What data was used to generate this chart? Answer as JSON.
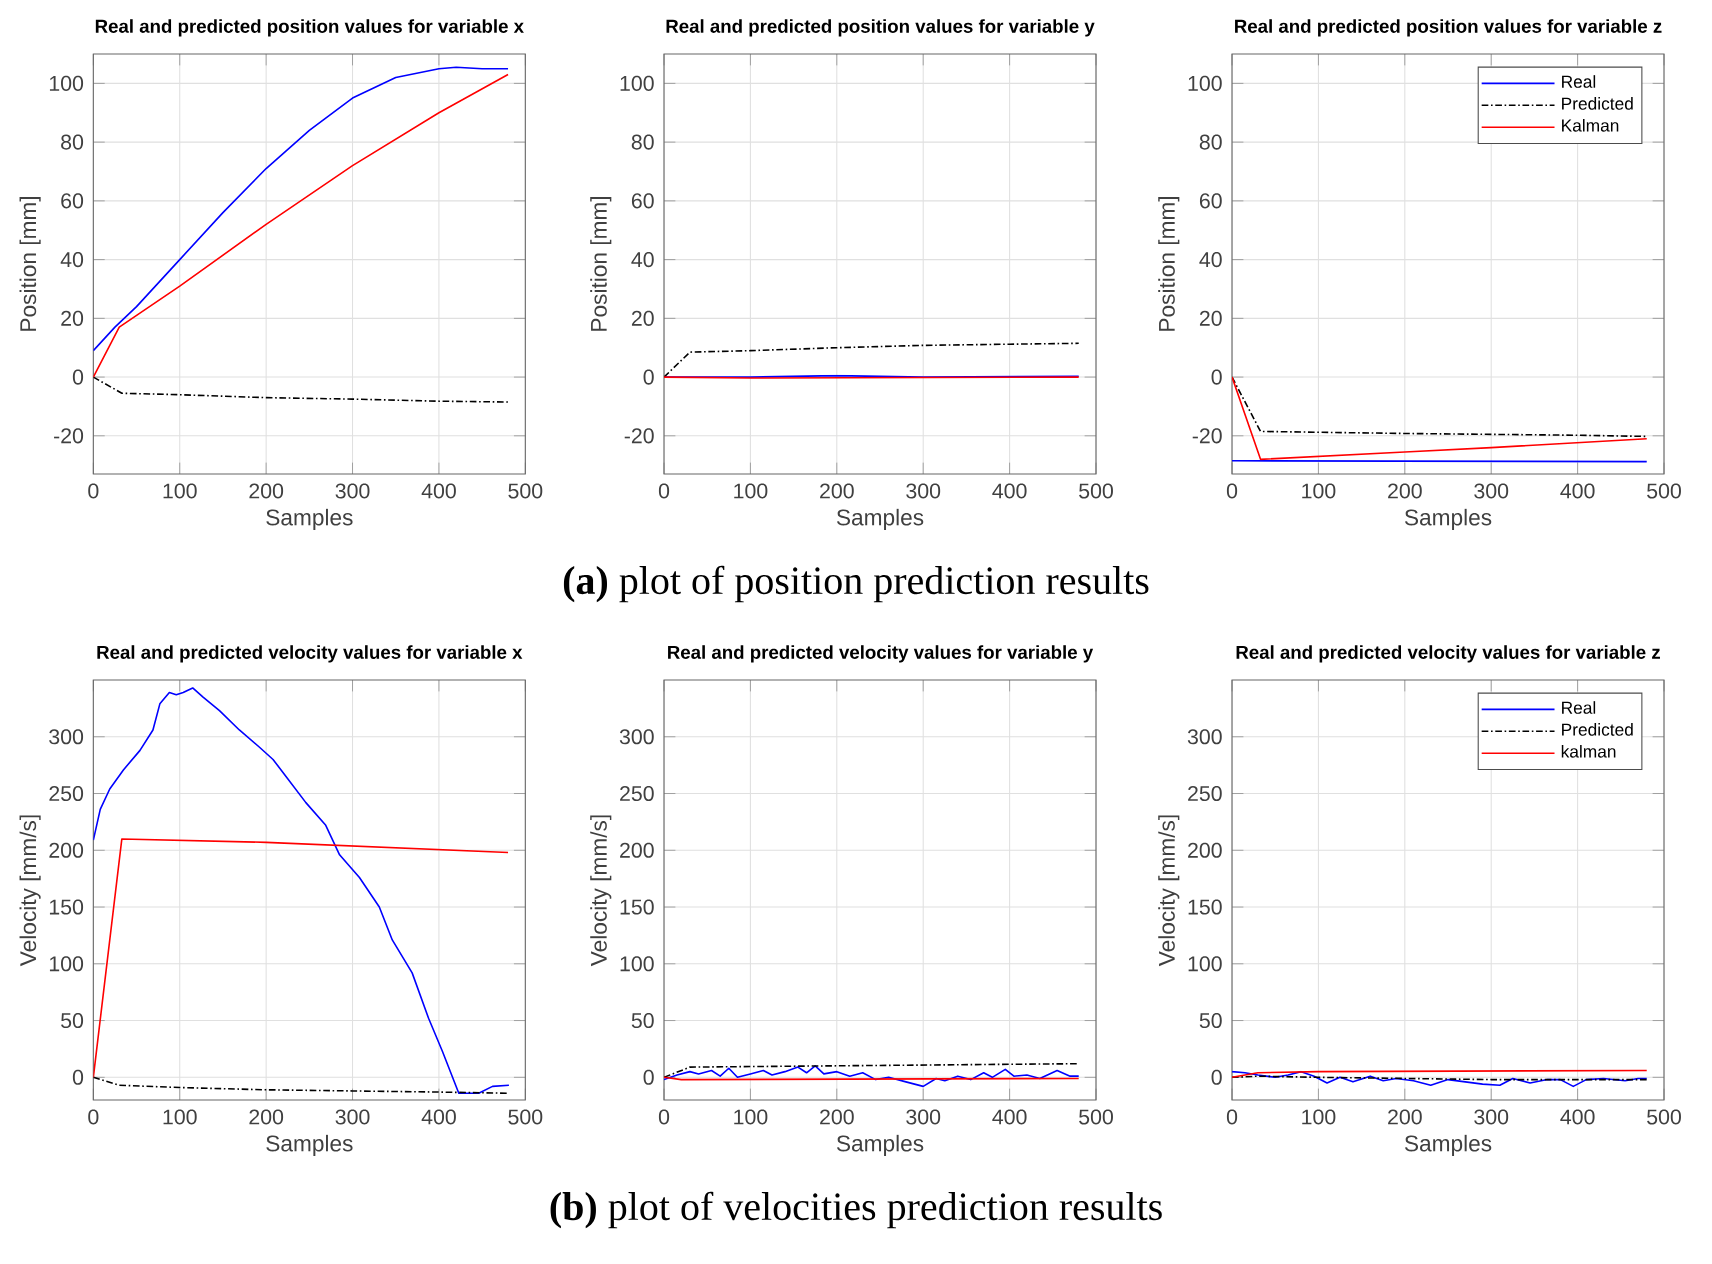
{
  "chart_data": [
    {
      "type": "line",
      "title": "Real and predicted position values for variable x",
      "xlabel": "Samples",
      "ylabel": "Position [mm]",
      "xlim": [
        0,
        500
      ],
      "ylim": [
        -33,
        110
      ],
      "xticks": [
        0,
        100,
        200,
        300,
        400,
        500
      ],
      "yticks": [
        -20,
        0,
        20,
        40,
        60,
        80,
        100
      ],
      "grid": true,
      "series": [
        {
          "color": "#0000ff",
          "x": [
            0,
            25,
            50,
            100,
            150,
            200,
            250,
            300,
            350,
            400,
            420,
            450,
            480
          ],
          "values": [
            9,
            17,
            24,
            40,
            56,
            71,
            84,
            95,
            102,
            105,
            105.5,
            105,
            105
          ]
        },
        {
          "color": "#000000",
          "line_style": "dashdot",
          "x": [
            0,
            33,
            100,
            200,
            300,
            400,
            480
          ],
          "values": [
            0,
            -5.5,
            -6,
            -7,
            -7.5,
            -8.2,
            -8.5
          ]
        },
        {
          "color": "#ff0000",
          "x": [
            0,
            30,
            100,
            200,
            300,
            400,
            480
          ],
          "values": [
            0,
            17,
            31,
            52,
            72,
            90,
            103
          ]
        }
      ]
    },
    {
      "type": "line",
      "title": "Real and predicted position values for variable y",
      "xlabel": "Samples",
      "ylabel": "Position [mm]",
      "xlim": [
        0,
        500
      ],
      "ylim": [
        -33,
        110
      ],
      "xticks": [
        0,
        100,
        200,
        300,
        400,
        500
      ],
      "yticks": [
        -20,
        0,
        20,
        40,
        60,
        80,
        100
      ],
      "grid": true,
      "annotations": [
        "**(a)** plot of position prediction results"
      ],
      "series": [
        {
          "color": "#0000ff",
          "x": [
            0,
            100,
            200,
            300,
            480
          ],
          "values": [
            0,
            0,
            0.5,
            0,
            0.3
          ]
        },
        {
          "color": "#000000",
          "line_style": "dashdot",
          "x": [
            0,
            30,
            100,
            200,
            300,
            400,
            480
          ],
          "values": [
            0,
            8.5,
            9,
            10,
            10.8,
            11.2,
            11.5
          ]
        },
        {
          "color": "#ff0000",
          "x": [
            0,
            100,
            480
          ],
          "values": [
            0,
            -0.3,
            0
          ]
        }
      ]
    },
    {
      "type": "line",
      "title": "Real and predicted position values for variable z",
      "xlabel": "Samples",
      "ylabel": "Position [mm]",
      "xlim": [
        0,
        500
      ],
      "ylim": [
        -33,
        110
      ],
      "xticks": [
        0,
        100,
        200,
        300,
        400,
        500
      ],
      "yticks": [
        -20,
        0,
        20,
        40,
        60,
        80,
        100
      ],
      "grid": true,
      "legend": "top right",
      "series": [
        {
          "name": "Real",
          "color": "#0000ff",
          "x": [
            0,
            480
          ],
          "values": [
            -28.5,
            -28.8
          ]
        },
        {
          "name": "Predicted",
          "color": "#000000",
          "line_style": "dashdot",
          "x": [
            0,
            33,
            200,
            400,
            480
          ],
          "values": [
            0,
            -18.5,
            -19.2,
            -19.8,
            -20.2
          ]
        },
        {
          "name": "Kalman",
          "color": "#ff0000",
          "x": [
            0,
            33,
            200,
            300,
            480
          ],
          "values": [
            0,
            -28,
            -25.5,
            -24,
            -21
          ]
        }
      ]
    },
    {
      "type": "line",
      "title": "Real and predicted velocity values for variable x",
      "xlabel": "Samples",
      "ylabel": "Velocity [mm/s]",
      "xlim": [
        0,
        500
      ],
      "ylim": [
        -20,
        350
      ],
      "xticks": [
        0,
        100,
        200,
        300,
        400,
        500
      ],
      "yticks": [
        0,
        50,
        100,
        150,
        200,
        250,
        300
      ],
      "grid": true,
      "series": [
        {
          "color": "#0000ff",
          "x": [
            0,
            8,
            19,
            35,
            54,
            69,
            77,
            88,
            96,
            104,
            115,
            127,
            146,
            169,
            192,
            208,
            223,
            246,
            269,
            285,
            308,
            331,
            346,
            369,
            388,
            404,
            423,
            446,
            462,
            481
          ],
          "values": [
            209,
            236,
            254,
            271,
            288,
            306,
            329,
            339,
            337,
            339,
            343,
            335,
            323,
            306,
            291,
            280,
            265,
            242,
            222,
            196,
            176,
            150,
            121,
            92,
            52,
            23,
            -14,
            -14,
            -8,
            -7
          ]
        },
        {
          "color": "#000000",
          "line_style": "dashdot",
          "x": [
            0,
            30,
            100,
            200,
            300,
            400,
            480
          ],
          "values": [
            0,
            -7,
            -9,
            -11,
            -12,
            -13,
            -14
          ]
        },
        {
          "color": "#ff0000",
          "x": [
            0,
            33,
            200,
            480
          ],
          "values": [
            0,
            210,
            207,
            198
          ]
        }
      ]
    },
    {
      "type": "line",
      "title": "Real and predicted velocity values for variable y",
      "xlabel": "Samples",
      "ylabel": "Velocity [mm/s]",
      "xlim": [
        0,
        500
      ],
      "ylim": [
        -20,
        350
      ],
      "xticks": [
        0,
        100,
        200,
        300,
        400,
        500
      ],
      "yticks": [
        0,
        50,
        100,
        150,
        200,
        250,
        300
      ],
      "grid": true,
      "annotations": [
        "**(b)** plot of velocities prediction results"
      ],
      "series": [
        {
          "color": "#0000ff",
          "x": [
            0,
            15,
            30,
            40,
            55,
            65,
            75,
            85,
            100,
            115,
            125,
            140,
            155,
            165,
            175,
            185,
            200,
            215,
            230,
            245,
            260,
            280,
            300,
            315,
            325,
            340,
            355,
            370,
            380,
            395,
            405,
            420,
            435,
            455,
            470,
            480
          ],
          "values": [
            -2,
            2,
            5,
            3,
            6,
            1,
            8,
            0,
            3,
            6,
            2,
            5,
            9,
            4,
            10,
            3,
            5,
            1,
            4,
            -2,
            0,
            -4,
            -8,
            -1,
            -3,
            1,
            -2,
            4,
            0,
            7,
            1,
            2,
            -1,
            6,
            1,
            1
          ]
        },
        {
          "color": "#000000",
          "line_style": "dashdot",
          "x": [
            0,
            30,
            480
          ],
          "values": [
            0,
            9,
            12
          ]
        },
        {
          "color": "#ff0000",
          "x": [
            0,
            20,
            480
          ],
          "values": [
            0,
            -2,
            -1
          ]
        }
      ]
    },
    {
      "type": "line",
      "title": "Real and predicted velocity values for variable z",
      "xlabel": "Samples",
      "ylabel": "Velocity [mm/s]",
      "xlim": [
        0,
        500
      ],
      "ylim": [
        -20,
        350
      ],
      "xticks": [
        0,
        100,
        200,
        300,
        400,
        500
      ],
      "yticks": [
        0,
        50,
        100,
        150,
        200,
        250,
        300
      ],
      "grid": true,
      "legend": "top right",
      "series": [
        {
          "name": "Real",
          "color": "#0000ff",
          "x": [
            0,
            15,
            30,
            50,
            65,
            80,
            95,
            110,
            125,
            140,
            160,
            175,
            190,
            210,
            230,
            250,
            270,
            290,
            310,
            325,
            345,
            365,
            380,
            395,
            410,
            430,
            455,
            470,
            480
          ],
          "values": [
            5,
            4,
            2,
            0,
            2,
            5,
            1,
            -5,
            0,
            -4,
            1,
            -3,
            -1,
            -3,
            -7,
            -2,
            -4,
            -6,
            -7,
            -1,
            -5,
            -2,
            -2,
            -8,
            -2,
            -1,
            -3,
            -1,
            -1
          ]
        },
        {
          "name": "Predicted",
          "color": "#000000",
          "line_style": "dashdot",
          "x": [
            0,
            30,
            100,
            200,
            300,
            480
          ],
          "values": [
            0,
            1,
            0,
            -1,
            -2,
            -2
          ]
        },
        {
          "name": "kalman",
          "color": "#ff0000",
          "x": [
            0,
            30,
            100,
            480
          ],
          "values": [
            0,
            4,
            5,
            6
          ]
        }
      ]
    }
  ]
}
